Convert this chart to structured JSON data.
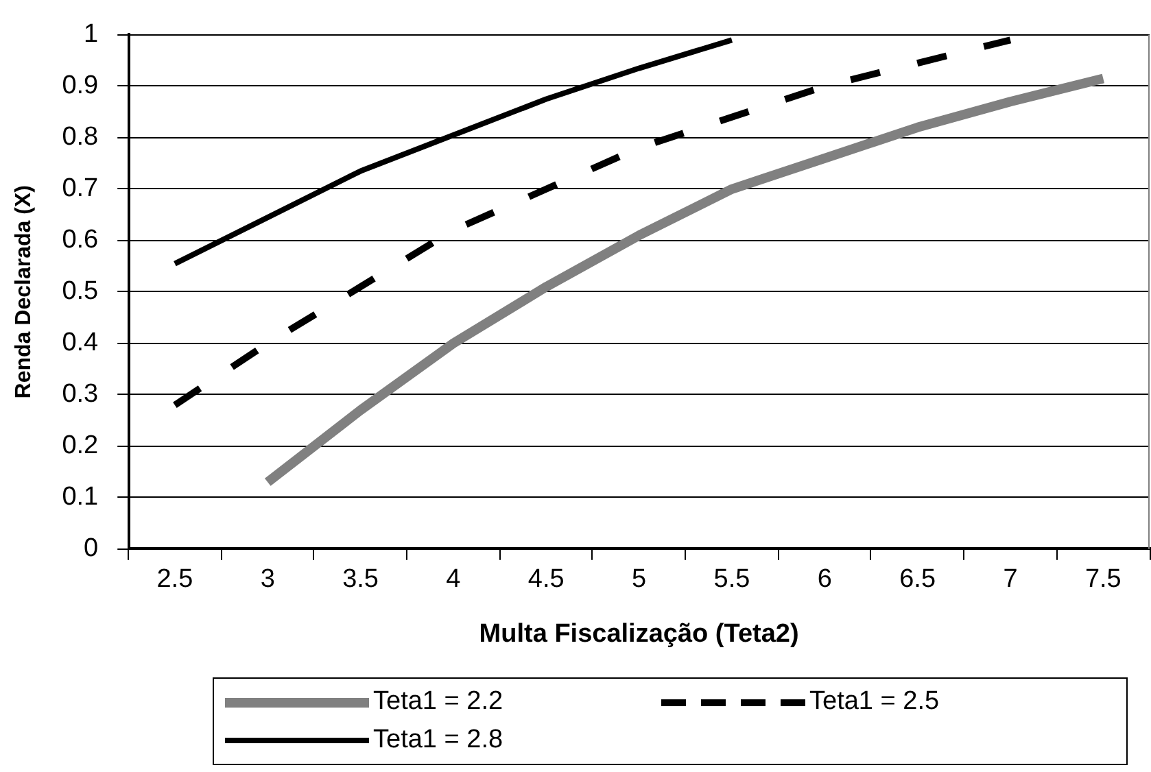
{
  "chart_data": {
    "type": "line",
    "xlabel": "Multa Fiscalização (Teta2)",
    "ylabel": "Renda Declarada (X)",
    "categories": [
      "2.5",
      "3",
      "3.5",
      "4",
      "4.5",
      "5",
      "5.5",
      "6",
      "6.5",
      "7",
      "7.5"
    ],
    "series": [
      {
        "name": "Teta1 = 2.2",
        "color": "#808080",
        "values": [
          null,
          0.13,
          0.27,
          0.4,
          0.51,
          0.61,
          0.7,
          0.76,
          0.82,
          0.87,
          0.915
        ]
      },
      {
        "name": "Teta1 = 2.5",
        "color": "#000000",
        "line_style": "dashed",
        "values": [
          0.28,
          0.4,
          0.51,
          0.62,
          0.7,
          0.78,
          0.84,
          0.9,
          0.945,
          0.99,
          null
        ]
      },
      {
        "name": "Teta1 = 2.8",
        "color": "#000000",
        "values": [
          0.555,
          0.645,
          0.735,
          0.805,
          0.875,
          0.935,
          0.99,
          null,
          null,
          null,
          null
        ]
      }
    ],
    "ylim": [
      0,
      1
    ],
    "yticks": [
      0,
      0.1,
      0.2,
      0.3,
      0.4,
      0.5,
      0.6,
      0.7,
      0.8,
      0.9,
      1
    ],
    "grid": "y",
    "legend": "bottom",
    "marker": "none",
    "line_style": "solid"
  }
}
